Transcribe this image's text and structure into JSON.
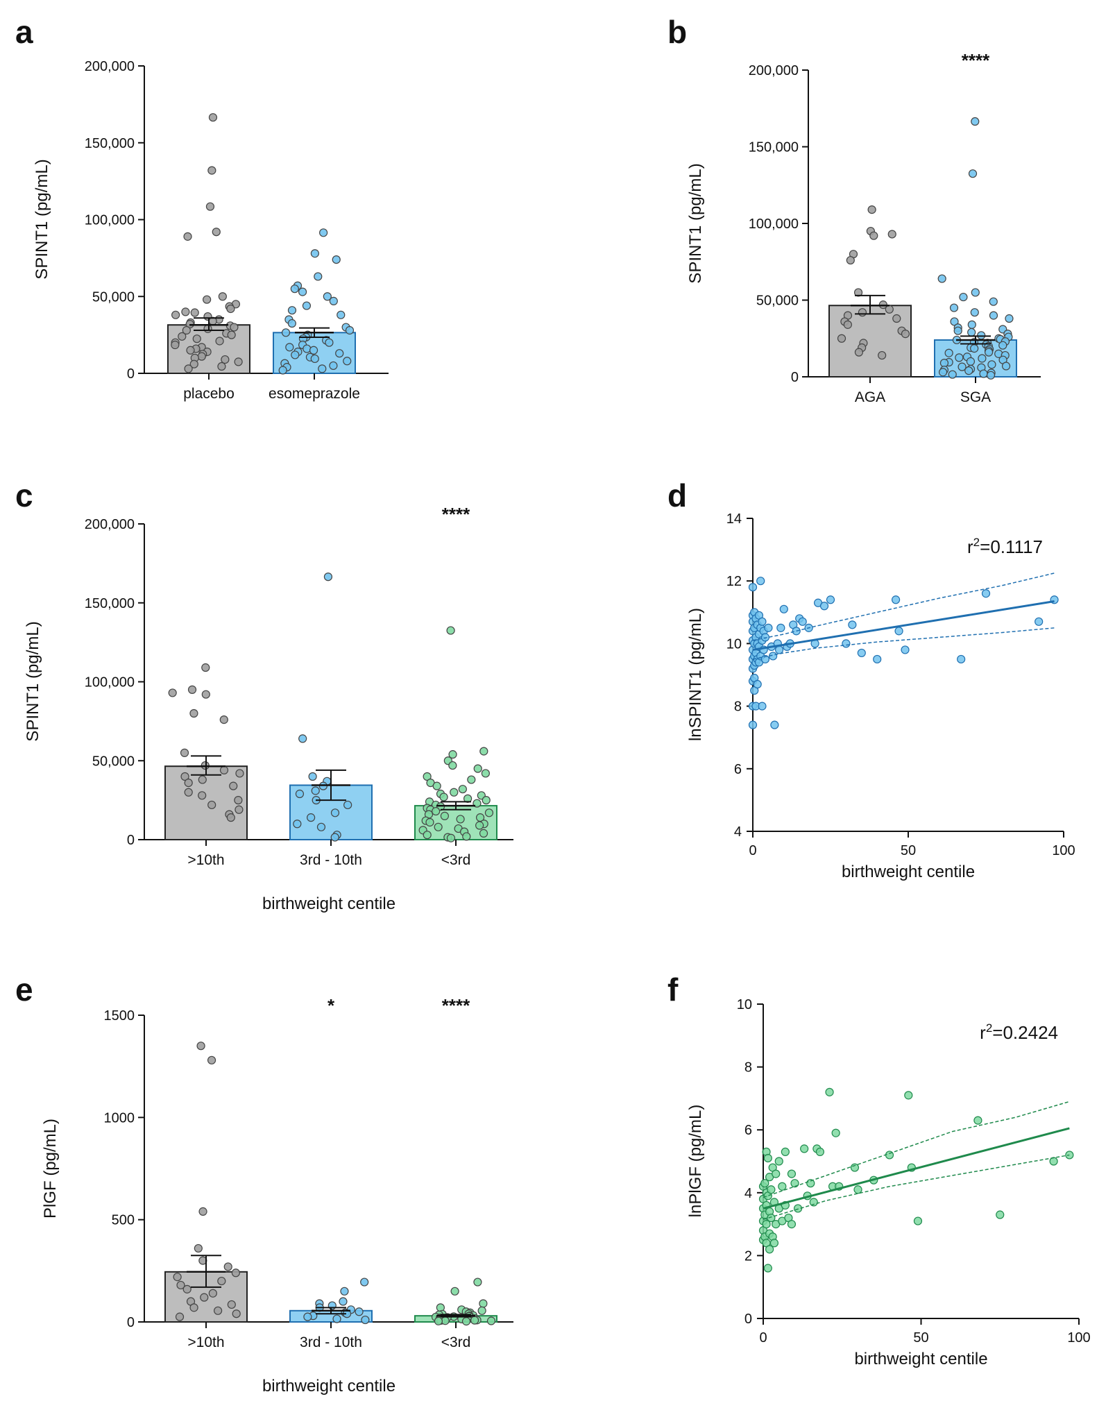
{
  "colors": {
    "grey_fill": "#bdbdbd",
    "grey_dot": "#9e9e9e",
    "blue_fill": "#8fd0f2",
    "blue_dot": "#72c3ee",
    "blue_line": "#1f6fb0",
    "green_fill": "#9fe3b8",
    "green_dot": "#7fd9a1",
    "green_line": "#1f8a4c",
    "axis": "#111111"
  },
  "chart_data": [
    {
      "panel": "a",
      "type": "bar",
      "ylabel": "SPINT1  (pg/mL)",
      "xlabel": "",
      "ylim": [
        0,
        200000
      ],
      "yticks": [
        0,
        50000,
        100000,
        150000,
        200000
      ],
      "ytick_labels": [
        "0",
        "50,000",
        "100,000",
        "150,000",
        "200,000"
      ],
      "categories": [
        "placebo",
        "esomeprazole"
      ],
      "fills": [
        "grey",
        "blue"
      ],
      "means": [
        31500,
        26500
      ],
      "sem": [
        [
          28000,
          36000
        ],
        [
          23500,
          29500
        ]
      ],
      "significance": [
        "",
        ""
      ],
      "points": [
        [
          166500,
          132000,
          108500,
          92000,
          89000,
          50000,
          48000,
          45000,
          43500,
          42000,
          40000,
          39500,
          38000,
          37000,
          35000,
          34000,
          33000,
          32000,
          31000,
          30000,
          29000,
          28000,
          26000,
          25000,
          24000,
          22500,
          21000,
          20000,
          18500,
          17000,
          16000,
          15000,
          14000,
          12500,
          11000,
          10000,
          9000,
          7500,
          6000,
          4500,
          3000
        ],
        [
          91500,
          78000,
          74000,
          63000,
          57000,
          55000,
          53000,
          50000,
          47000,
          44000,
          41000,
          38000,
          35000,
          32500,
          30000,
          28000,
          26500,
          25000,
          23500,
          22500,
          21500,
          20000,
          18500,
          17000,
          16000,
          15000,
          14000,
          13000,
          12000,
          10500,
          9500,
          8000,
          6500,
          5000,
          4000,
          3000,
          2000
        ]
      ]
    },
    {
      "panel": "b",
      "type": "bar",
      "ylabel": "SPINT1  (pg/mL)",
      "xlabel": "",
      "ylim": [
        0,
        200000
      ],
      "yticks": [
        0,
        50000,
        100000,
        150000,
        200000
      ],
      "ytick_labels": [
        "0",
        "50,000",
        "100,000",
        "150,000",
        "200,000"
      ],
      "categories": [
        "AGA",
        "SGA"
      ],
      "fills": [
        "grey",
        "blue"
      ],
      "means": [
        46500,
        24000
      ],
      "sem": [
        [
          41000,
          53000
        ],
        [
          21500,
          26500
        ]
      ],
      "significance": [
        "",
        "****"
      ],
      "points": [
        [
          109000,
          95000,
          93000,
          92000,
          80000,
          76000,
          55000,
          47000,
          44000,
          42000,
          40000,
          38000,
          36000,
          34000,
          30000,
          28000,
          25000,
          22000,
          19000,
          16000,
          14000
        ],
        [
          166500,
          132500,
          64000,
          55000,
          52000,
          49000,
          45000,
          42000,
          40000,
          38000,
          36000,
          34000,
          32000,
          31000,
          30000,
          29000,
          28000,
          27000,
          26000,
          25000,
          24500,
          24000,
          23000,
          22500,
          22000,
          21000,
          20500,
          20000,
          19000,
          18500,
          18000,
          17000,
          16000,
          15500,
          15000,
          14000,
          13000,
          12500,
          12000,
          11000,
          10000,
          9500,
          9000,
          8000,
          7000,
          6500,
          6000,
          5000,
          4500,
          4000,
          3000,
          2500,
          2000,
          1500,
          1000
        ]
      ]
    },
    {
      "panel": "c",
      "type": "bar",
      "ylabel": "SPINT1 (pg/mL)",
      "xlabel": "birthweight centile",
      "ylim": [
        0,
        200000
      ],
      "yticks": [
        0,
        50000,
        100000,
        150000,
        200000
      ],
      "ytick_labels": [
        "0",
        "50,000",
        "100,000",
        "150,000",
        "200,000"
      ],
      "categories": [
        ">10th",
        "3rd - 10th",
        "<3rd"
      ],
      "fills": [
        "grey",
        "blue",
        "green"
      ],
      "means": [
        46500,
        34500,
        21500
      ],
      "sem": [
        [
          41000,
          53000
        ],
        [
          25000,
          44000
        ],
        [
          19000,
          24000
        ]
      ],
      "significance": [
        "",
        "",
        "****"
      ],
      "points": [
        [
          109000,
          95000,
          93000,
          92000,
          80000,
          76000,
          55000,
          47000,
          44000,
          42000,
          40000,
          38000,
          36000,
          34000,
          30000,
          28000,
          25000,
          22000,
          19000,
          16000,
          14000
        ],
        [
          166500,
          64000,
          40000,
          37000,
          34000,
          31000,
          29000,
          25000,
          22000,
          17000,
          14000,
          10000,
          8000,
          3000,
          1500
        ],
        [
          132500,
          56000,
          54000,
          50000,
          47000,
          45000,
          42000,
          40000,
          38000,
          36000,
          34000,
          32000,
          30000,
          29000,
          28000,
          27000,
          26000,
          25000,
          24000,
          23000,
          22000,
          21000,
          20000,
          19000,
          18000,
          17000,
          16000,
          15000,
          14000,
          13000,
          12000,
          11000,
          10000,
          9000,
          8000,
          7000,
          6000,
          5000,
          4000,
          3000,
          2000,
          1500,
          1000
        ]
      ]
    },
    {
      "panel": "d",
      "type": "scatter",
      "ylabel": "lnSPINT1 (pg/mL)",
      "xlabel": "birthweight centile",
      "xlim": [
        0,
        100
      ],
      "ylim": [
        4,
        14
      ],
      "xticks": [
        0,
        50,
        100
      ],
      "yticks": [
        4,
        6,
        8,
        10,
        12,
        14
      ],
      "annotation_prefix": "r",
      "annotation_sup": "2",
      "annotation_value": "=0.1117",
      "color": "blue",
      "points": [
        [
          0,
          11.8
        ],
        [
          0,
          10.9
        ],
        [
          0,
          10.7
        ],
        [
          0,
          10.4
        ],
        [
          0,
          10.1
        ],
        [
          0,
          9.8
        ],
        [
          0,
          9.5
        ],
        [
          0,
          9.2
        ],
        [
          0,
          8.8
        ],
        [
          0,
          8.0
        ],
        [
          0,
          7.4
        ],
        [
          0.5,
          11.0
        ],
        [
          0.5,
          10.5
        ],
        [
          0.5,
          10.0
        ],
        [
          0.5,
          9.6
        ],
        [
          0.5,
          9.3
        ],
        [
          0.5,
          8.9
        ],
        [
          0.5,
          8.5
        ],
        [
          1,
          10.8
        ],
        [
          1,
          10.2
        ],
        [
          1,
          9.7
        ],
        [
          1,
          9.4
        ],
        [
          1,
          8.0
        ],
        [
          1.5,
          10.6
        ],
        [
          1.5,
          10.0
        ],
        [
          1.5,
          9.5
        ],
        [
          1.5,
          8.7
        ],
        [
          2,
          10.9
        ],
        [
          2,
          10.3
        ],
        [
          2,
          9.9
        ],
        [
          2,
          9.4
        ],
        [
          2.5,
          12.0
        ],
        [
          2.5,
          10.5
        ],
        [
          2.5,
          9.6
        ],
        [
          3,
          10.7
        ],
        [
          3,
          10.1
        ],
        [
          3,
          8.0
        ],
        [
          3.5,
          10.4
        ],
        [
          3.5,
          9.8
        ],
        [
          4,
          10.2
        ],
        [
          4,
          9.5
        ],
        [
          5,
          10.5
        ],
        [
          6,
          9.9
        ],
        [
          6.5,
          9.6
        ],
        [
          7,
          7.4
        ],
        [
          8,
          10.0
        ],
        [
          8.5,
          9.8
        ],
        [
          9,
          10.5
        ],
        [
          10,
          11.1
        ],
        [
          11,
          9.9
        ],
        [
          12,
          10.0
        ],
        [
          13,
          10.6
        ],
        [
          14,
          10.4
        ],
        [
          15,
          10.8
        ],
        [
          16,
          10.7
        ],
        [
          18,
          10.5
        ],
        [
          20,
          10.0
        ],
        [
          21,
          11.3
        ],
        [
          23,
          11.2
        ],
        [
          25,
          11.4
        ],
        [
          30,
          10.0
        ],
        [
          32,
          10.6
        ],
        [
          35,
          9.7
        ],
        [
          40,
          9.5
        ],
        [
          46,
          11.4
        ],
        [
          47,
          10.4
        ],
        [
          49,
          9.8
        ],
        [
          67,
          9.5
        ],
        [
          75,
          11.6
        ],
        [
          92,
          10.7
        ],
        [
          97,
          11.4
        ]
      ],
      "fit": {
        "x": [
          0,
          97
        ],
        "y": [
          9.8,
          11.35
        ]
      },
      "ci_upper": {
        "x": [
          0,
          10,
          20,
          40,
          60,
          80,
          97
        ],
        "y": [
          10.1,
          10.3,
          10.55,
          11.0,
          11.45,
          11.85,
          12.25
        ]
      },
      "ci_lower": {
        "x": [
          0,
          10,
          20,
          40,
          60,
          80,
          97
        ],
        "y": [
          9.5,
          9.7,
          9.85,
          10.05,
          10.2,
          10.35,
          10.5
        ]
      }
    },
    {
      "panel": "e",
      "type": "bar",
      "ylabel": "PlGF (pg/mL)",
      "xlabel": "birthweight centile",
      "ylim": [
        0,
        1500
      ],
      "yticks": [
        0,
        500,
        1000,
        1500
      ],
      "ytick_labels": [
        "0",
        "500",
        "1000",
        "1500"
      ],
      "categories": [
        ">10th",
        "3rd - 10th",
        "<3rd"
      ],
      "fills": [
        "grey",
        "blue",
        "green"
      ],
      "means": [
        245,
        55,
        30
      ],
      "sem": [
        [
          170,
          325
        ],
        [
          40,
          70
        ],
        [
          25,
          36
        ]
      ],
      "significance": [
        "",
        "*",
        "****"
      ],
      "points": [
        [
          1350,
          1280,
          540,
          360,
          300,
          270,
          240,
          220,
          200,
          180,
          160,
          140,
          120,
          100,
          85,
          70,
          55,
          40,
          25
        ],
        [
          195,
          150,
          100,
          90,
          80,
          70,
          60,
          50,
          45,
          40,
          30,
          25,
          15,
          10
        ],
        [
          195,
          150,
          90,
          70,
          60,
          55,
          50,
          45,
          40,
          38,
          35,
          32,
          30,
          28,
          26,
          24,
          22,
          20,
          18,
          16,
          14,
          12,
          10,
          9,
          8,
          7,
          6,
          5,
          4,
          3
        ]
      ]
    },
    {
      "panel": "f",
      "type": "scatter",
      "ylabel": "lnPlGF (pg/mL)",
      "xlabel": "birthweight centile",
      "xlim": [
        0,
        100
      ],
      "ylim": [
        0,
        10
      ],
      "xticks": [
        0,
        50,
        100
      ],
      "yticks": [
        0,
        2,
        4,
        6,
        8,
        10
      ],
      "annotation_prefix": "r",
      "annotation_sup": "2",
      "annotation_value": "=0.2424",
      "color": "green",
      "points": [
        [
          0,
          4.2
        ],
        [
          0,
          3.8
        ],
        [
          0,
          3.5
        ],
        [
          0,
          3.1
        ],
        [
          0,
          2.8
        ],
        [
          0,
          2.5
        ],
        [
          0.5,
          4.3
        ],
        [
          0.5,
          3.3
        ],
        [
          0.5,
          2.6
        ],
        [
          1,
          5.3
        ],
        [
          1,
          4.0
        ],
        [
          1,
          3.6
        ],
        [
          1,
          3.0
        ],
        [
          1,
          2.4
        ],
        [
          1.5,
          5.1
        ],
        [
          1.5,
          3.9
        ],
        [
          1.5,
          1.6
        ],
        [
          2,
          4.5
        ],
        [
          2,
          3.4
        ],
        [
          2,
          2.7
        ],
        [
          2,
          2.2
        ],
        [
          2.5,
          4.1
        ],
        [
          2.5,
          3.2
        ],
        [
          3,
          4.8
        ],
        [
          3,
          2.6
        ],
        [
          3.5,
          3.7
        ],
        [
          3.5,
          2.4
        ],
        [
          4,
          4.6
        ],
        [
          4,
          3.0
        ],
        [
          5,
          5.0
        ],
        [
          5,
          3.5
        ],
        [
          6,
          4.2
        ],
        [
          6,
          3.1
        ],
        [
          7,
          5.3
        ],
        [
          7,
          3.6
        ],
        [
          8,
          3.2
        ],
        [
          9,
          4.6
        ],
        [
          9,
          3.0
        ],
        [
          10,
          4.3
        ],
        [
          11,
          3.5
        ],
        [
          13,
          5.4
        ],
        [
          14,
          3.9
        ],
        [
          15,
          4.3
        ],
        [
          16,
          3.7
        ],
        [
          17,
          5.4
        ],
        [
          18,
          5.3
        ],
        [
          21,
          7.2
        ],
        [
          22,
          4.2
        ],
        [
          23,
          5.9
        ],
        [
          24,
          4.2
        ],
        [
          29,
          4.8
        ],
        [
          30,
          4.1
        ],
        [
          35,
          4.4
        ],
        [
          40,
          5.2
        ],
        [
          46,
          7.1
        ],
        [
          47,
          4.8
        ],
        [
          49,
          3.1
        ],
        [
          68,
          6.3
        ],
        [
          75,
          3.3
        ],
        [
          92,
          5.0
        ],
        [
          97,
          5.2
        ]
      ],
      "fit": {
        "x": [
          0,
          97
        ],
        "y": [
          3.5,
          6.05
        ]
      },
      "ci_upper": {
        "x": [
          0,
          10,
          20,
          40,
          60,
          80,
          97
        ],
        "y": [
          3.85,
          4.2,
          4.55,
          5.25,
          5.95,
          6.4,
          6.9
        ]
      },
      "ci_lower": {
        "x": [
          0,
          10,
          20,
          40,
          60,
          80,
          97
        ],
        "y": [
          3.15,
          3.45,
          3.75,
          4.2,
          4.55,
          4.9,
          5.2
        ]
      }
    }
  ]
}
